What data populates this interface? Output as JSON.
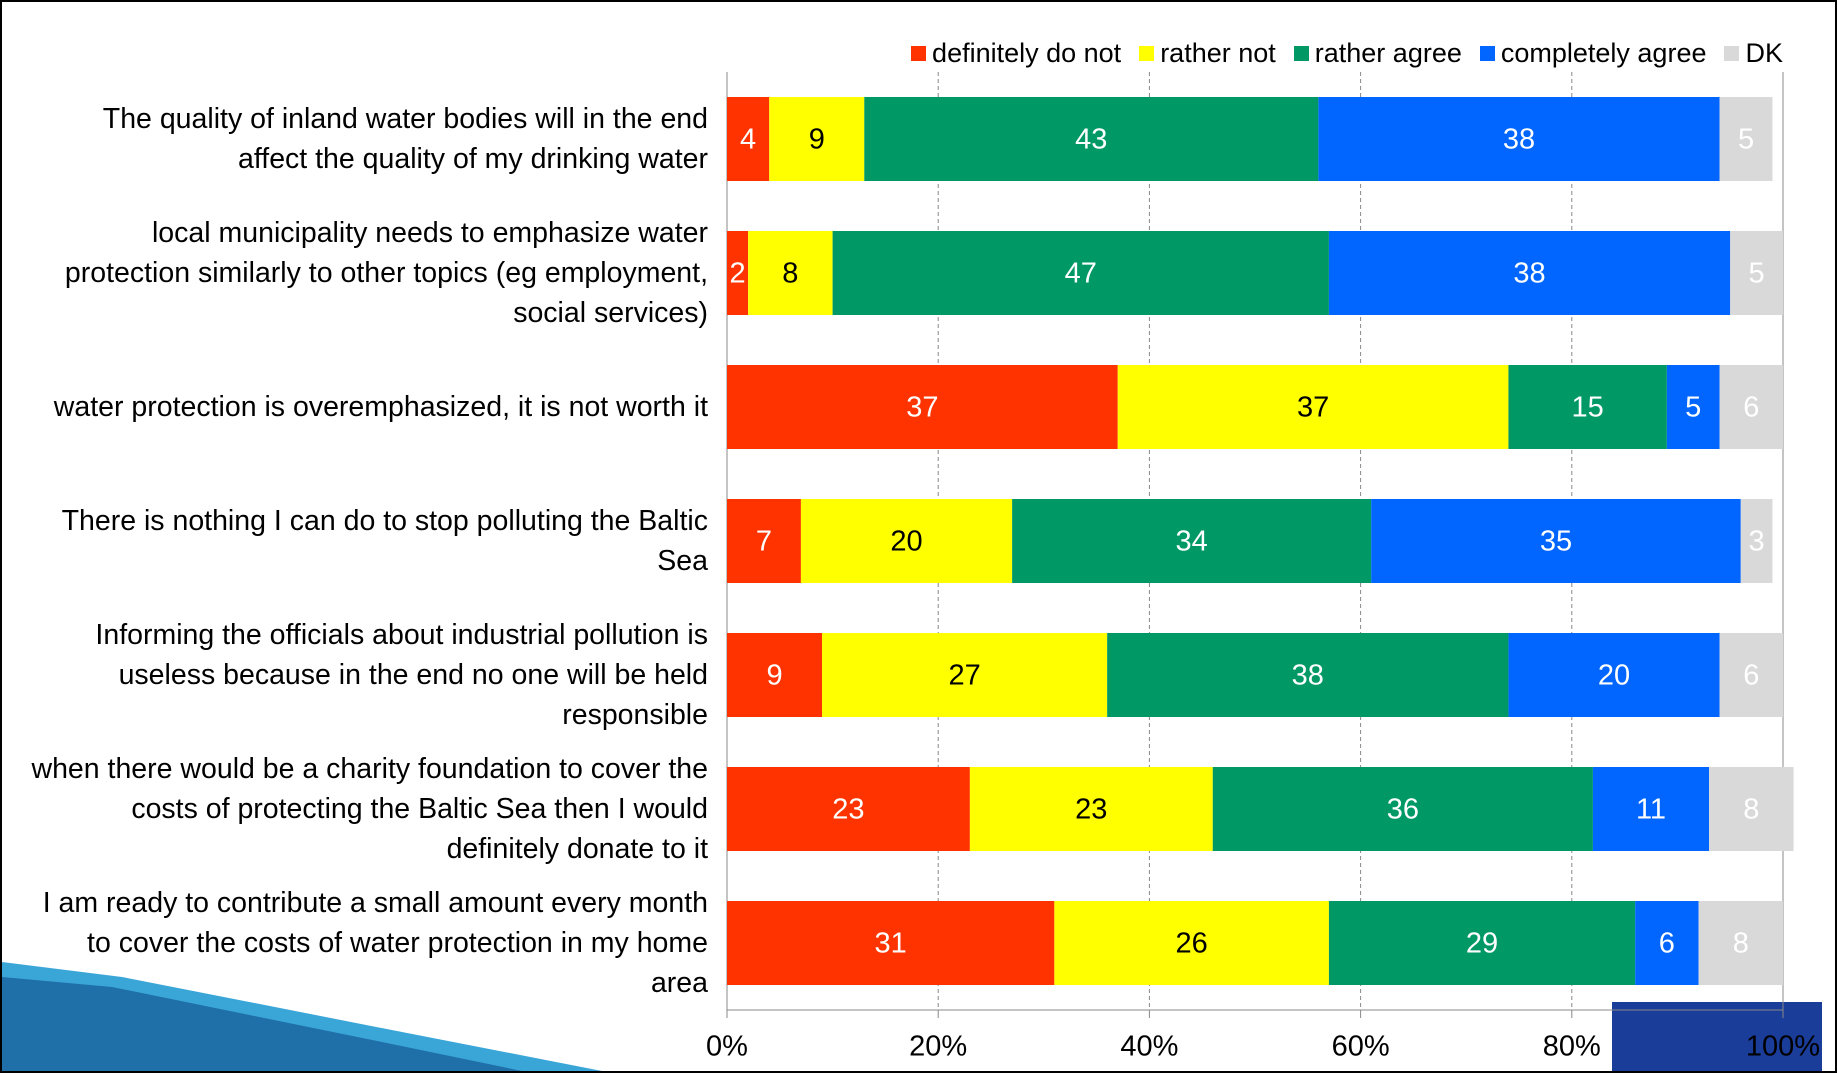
{
  "chart_data": {
    "type": "stacked_bar_horizontal",
    "categories": [
      "The quality of inland water bodies will in the end affect the quality of my drinking water",
      "local municipality needs to emphasize water protection similarly to other topics (eg employment, social services)",
      "water protection is overemphasized, it is not worth it",
      "There is nothing I can do to stop polluting the Baltic Sea",
      "Informing the officials about industrial pollution is useless because in the end no one will be held responsible",
      "when there would be a charity foundation to cover the costs of protecting the Baltic Sea then I would definitely donate to it",
      "I am ready to contribute a small amount every month to cover the costs of water protection in my home area"
    ],
    "series": [
      {
        "name": "definitely do not",
        "color": "#ff3300",
        "values": [
          4,
          2,
          37,
          7,
          9,
          23,
          31
        ]
      },
      {
        "name": "rather not",
        "color": "#ffff00",
        "values": [
          9,
          8,
          37,
          20,
          27,
          23,
          26
        ]
      },
      {
        "name": "rather agree",
        "color": "#009966",
        "values": [
          43,
          47,
          15,
          34,
          38,
          36,
          29
        ]
      },
      {
        "name": "completely agree",
        "color": "#0066ff",
        "values": [
          38,
          38,
          5,
          35,
          20,
          11,
          6
        ]
      },
      {
        "name": "DK",
        "color": "#d9d9d9",
        "values": [
          5,
          5,
          6,
          3,
          6,
          8,
          8
        ]
      }
    ],
    "xlim": [
      0,
      100
    ],
    "xticks": [
      {
        "value": 0,
        "label": "0%"
      },
      {
        "value": 20,
        "label": "20%"
      },
      {
        "value": 40,
        "label": "40%"
      },
      {
        "value": 60,
        "label": "60%"
      },
      {
        "value": 80,
        "label": "80%"
      },
      {
        "value": 100,
        "label": "100%"
      }
    ],
    "grid": true,
    "legend": "top"
  }
}
